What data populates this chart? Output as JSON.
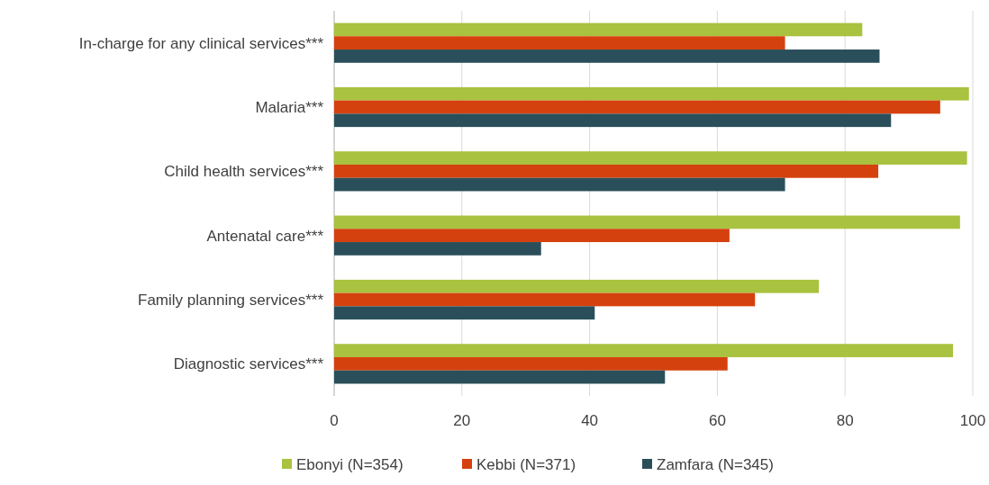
{
  "chart_data": {
    "type": "bar",
    "orientation": "horizontal",
    "categories": [
      "In-charge for any clinical services***",
      "Malaria***",
      "Child health services***",
      "Antenatal care***",
      "Family planning services***",
      "Diagnostic services***"
    ],
    "series": [
      {
        "name": "Ebonyi (N=354)",
        "color": "#a9c23f",
        "values": [
          82.7,
          99.4,
          99.1,
          98.0,
          75.9,
          96.9
        ]
      },
      {
        "name": "Kebbi (N=371)",
        "color": "#d5410e",
        "values": [
          70.6,
          94.9,
          85.2,
          61.9,
          65.9,
          61.6
        ]
      },
      {
        "name": "Zamfara (N=345)",
        "color": "#2a4f5a",
        "values": [
          85.4,
          87.2,
          70.6,
          32.4,
          40.8,
          51.8
        ]
      }
    ],
    "xlim": [
      0,
      100
    ],
    "xticks": [
      0,
      20,
      40,
      60,
      80,
      100
    ],
    "grid": "x",
    "legend": "bottom"
  }
}
